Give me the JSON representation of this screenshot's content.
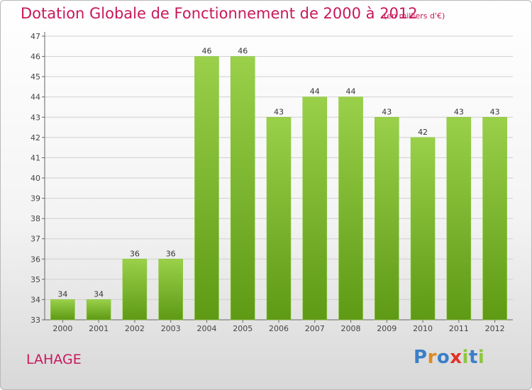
{
  "header": {
    "title": "Dotation Globale de Fonctionnement de 2000 à 2012",
    "subtitle": "(en milliers d'€)"
  },
  "footer": {
    "commune": "LAHAGE",
    "logo_text": "Proxiti"
  },
  "colors": {
    "bar_top": "#9ad04a",
    "bar_bottom": "#5e9a14",
    "title": "#c8185a",
    "grid": "#cfcfcf"
  },
  "chart_data": {
    "type": "bar",
    "categories": [
      "2000",
      "2001",
      "2002",
      "2003",
      "2004",
      "2005",
      "2006",
      "2007",
      "2008",
      "2009",
      "2010",
      "2011",
      "2012"
    ],
    "values": [
      34,
      34,
      36,
      36,
      46,
      46,
      43,
      44,
      44,
      43,
      42,
      43,
      43
    ],
    "title": "Dotation Globale de Fonctionnement de 2000 à 2012",
    "subtitle": "(en milliers d'€)",
    "xlabel": "",
    "ylabel": "",
    "ylim": [
      33,
      47
    ],
    "yticks": [
      33,
      34,
      35,
      36,
      37,
      38,
      39,
      40,
      41,
      42,
      43,
      44,
      45,
      46,
      47
    ],
    "grid": true,
    "data_labels": true
  }
}
